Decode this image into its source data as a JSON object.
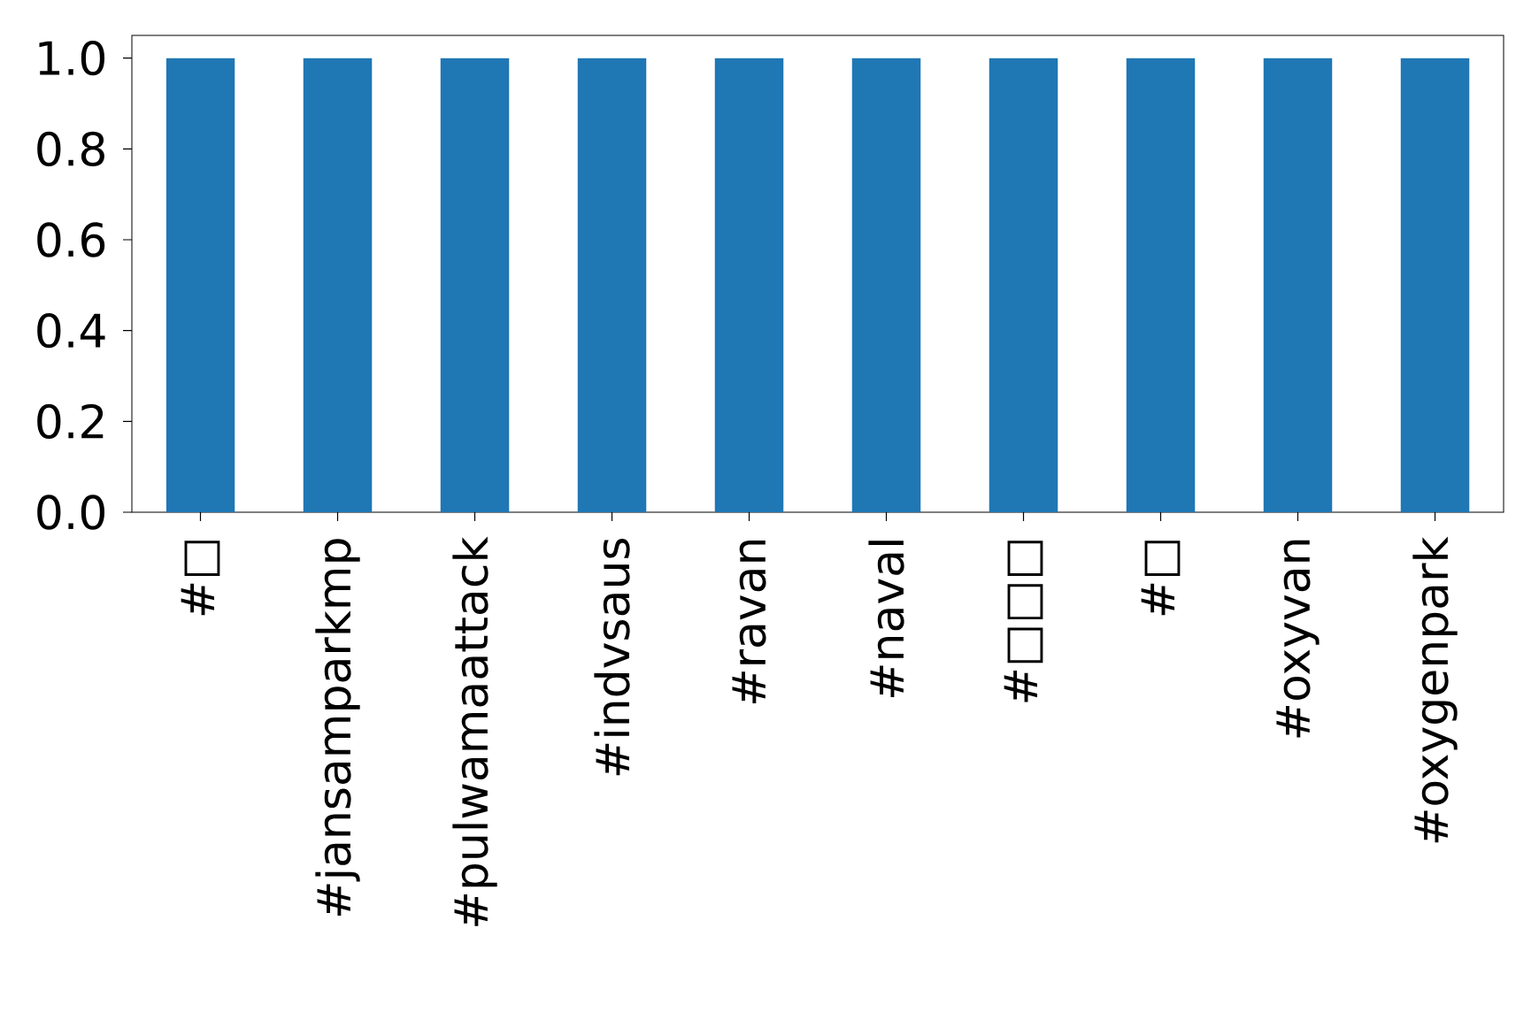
{
  "chart_data": {
    "type": "bar",
    "categories": [
      "#□",
      "#jansamparkmp",
      "#pulwamaattack",
      "#indvsaus",
      "#ravan",
      "#naval",
      "#□□□",
      "#□",
      "#oxyvan",
      "#oxygenpark"
    ],
    "values": [
      1,
      1,
      1,
      1,
      1,
      1,
      1,
      1,
      1,
      1
    ],
    "color": "#1f77b4",
    "ylim": [
      0,
      1.05
    ],
    "yticks": [
      {
        "value": 0,
        "label": "0.0"
      },
      {
        "value": 0.2,
        "label": "0.2"
      },
      {
        "value": 0.4,
        "label": "0.4"
      },
      {
        "value": 0.6,
        "label": "0.6"
      },
      {
        "value": 0.8,
        "label": "0.8"
      },
      {
        "value": 1,
        "label": "1.0"
      }
    ],
    "grid": false
  }
}
